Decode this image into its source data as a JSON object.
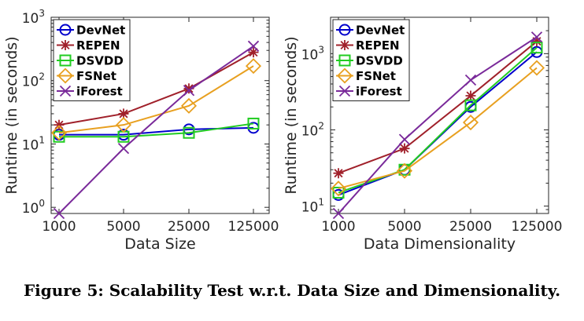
{
  "caption": "Figure 5: Scalability Test w.r.t. Data Size and Dimensionality.",
  "series_styles": [
    {
      "name": "DevNet",
      "color": "#0000cc",
      "marker": "circle"
    },
    {
      "name": "REPEN",
      "color": "#a0202a",
      "marker": "asterisk"
    },
    {
      "name": "DSVDD",
      "color": "#22cc22",
      "marker": "square"
    },
    {
      "name": "FSNet",
      "color": "#e8a020",
      "marker": "diamond"
    },
    {
      "name": "iForest",
      "color": "#7a2a9a",
      "marker": "x"
    }
  ],
  "chart_data": [
    {
      "type": "line",
      "xlabel": "Data Size",
      "ylabel": "Runtime (in seconds)",
      "yscale": "log",
      "ylim": [
        0.8,
        1000
      ],
      "x": [
        1000,
        5000,
        25000,
        125000
      ],
      "x_tick_labels": [
        "1000",
        "5000",
        "25000",
        "125000"
      ],
      "y_ticks": [
        1,
        10,
        100,
        1000
      ],
      "y_tick_labels": [
        {
          "base": "10",
          "exp": "0"
        },
        {
          "base": "10",
          "exp": "1"
        },
        {
          "base": "10",
          "exp": "2"
        },
        {
          "base": "10",
          "exp": "3"
        }
      ],
      "grid": false,
      "legend_position": "top-left",
      "series": [
        {
          "name": "DevNet",
          "values": [
            14,
            14,
            17,
            18
          ]
        },
        {
          "name": "REPEN",
          "values": [
            20,
            30,
            75,
            280
          ]
        },
        {
          "name": "DSVDD",
          "values": [
            13,
            13,
            15,
            21
          ]
        },
        {
          "name": "FSNet",
          "values": [
            15,
            20,
            40,
            170
          ]
        },
        {
          "name": "iForest",
          "values": [
            0.8,
            8.5,
            70,
            350
          ]
        }
      ]
    },
    {
      "type": "line",
      "xlabel": "Data Dimensionality",
      "ylabel": "Runtime (in seconds)",
      "yscale": "log",
      "ylim": [
        8,
        3000
      ],
      "x": [
        1000,
        5000,
        25000,
        125000
      ],
      "x_tick_labels": [
        "1000",
        "5000",
        "25000",
        "125000"
      ],
      "y_ticks": [
        10,
        100,
        1000
      ],
      "y_tick_labels": [
        {
          "base": "10",
          "exp": "1"
        },
        {
          "base": "10",
          "exp": "2"
        },
        {
          "base": "10",
          "exp": "3"
        }
      ],
      "grid": false,
      "legend_position": "top-left",
      "series": [
        {
          "name": "DevNet",
          "values": [
            14,
            30,
            200,
            1050
          ]
        },
        {
          "name": "REPEN",
          "values": [
            27,
            57,
            280,
            1450
          ]
        },
        {
          "name": "DSVDD",
          "values": [
            15,
            30,
            210,
            1200
          ]
        },
        {
          "name": "FSNet",
          "values": [
            17,
            29,
            125,
            650
          ]
        },
        {
          "name": "iForest",
          "values": [
            8,
            75,
            450,
            1650
          ]
        }
      ]
    }
  ]
}
